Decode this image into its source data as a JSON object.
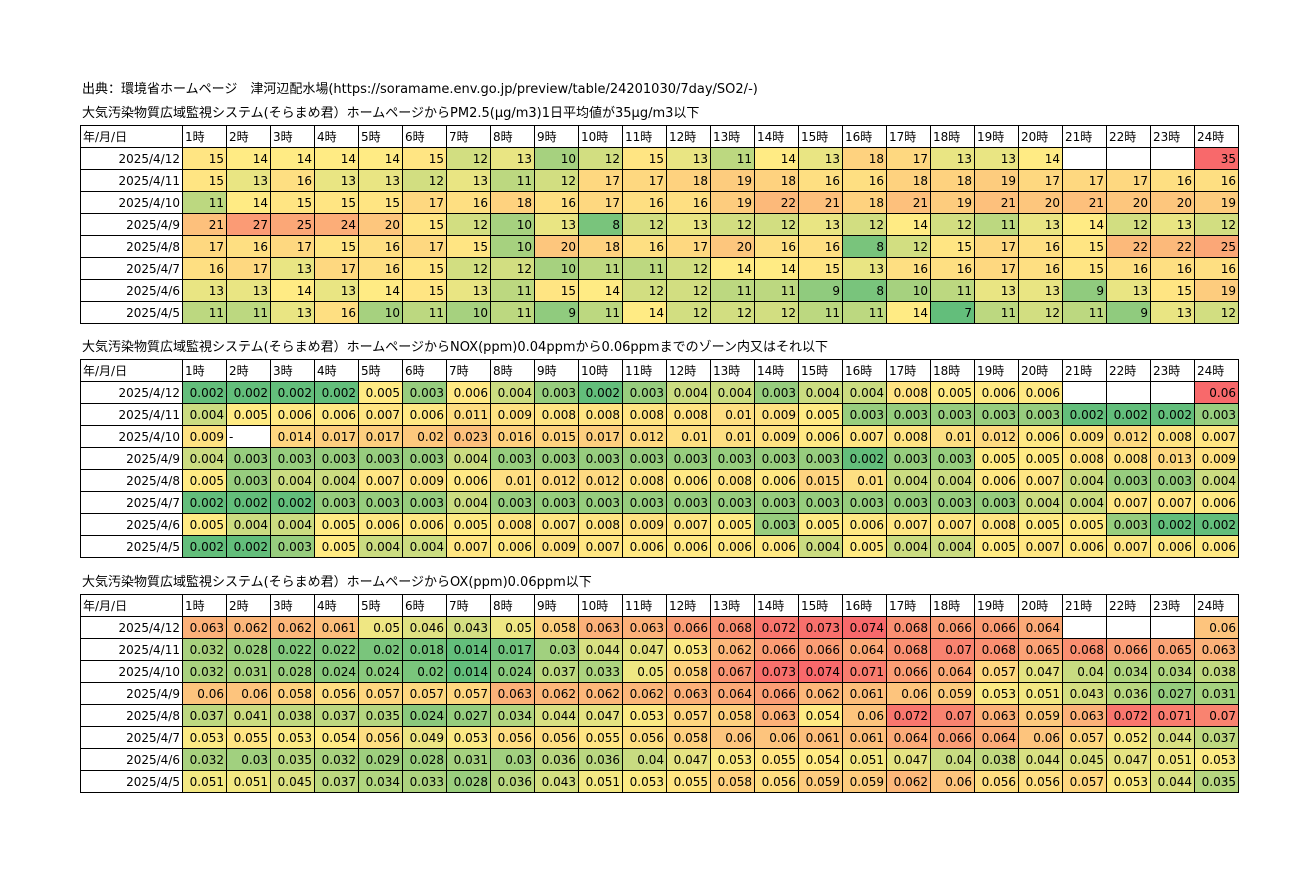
{
  "source": "出典：環境省ホームページ　津河辺配水場(https://soramame.env.go.jp/preview/table/24201030/7day/SO2/-)",
  "hours": [
    "1時",
    "2時",
    "3時",
    "4時",
    "5時",
    "6時",
    "7時",
    "8時",
    "9時",
    "10時",
    "11時",
    "12時",
    "13時",
    "14時",
    "15時",
    "16時",
    "17時",
    "18時",
    "19時",
    "20時",
    "21時",
    "22時",
    "23時",
    "24時"
  ],
  "date_header": "年/月/日",
  "dates": [
    "2025/4/12",
    "2025/4/11",
    "2025/4/10",
    "2025/4/9",
    "2025/4/8",
    "2025/4/7",
    "2025/4/6",
    "2025/4/5"
  ],
  "sections": [
    {
      "title": "大気汚染物質広域監視システム(そらまめ君）ホームページからPM2.5(μg/m3)1日平均値が35μg/m3以下",
      "rows": [
        [
          "15",
          "14",
          "14",
          "14",
          "14",
          "15",
          "12",
          "13",
          "10",
          "12",
          "15",
          "13",
          "11",
          "14",
          "13",
          "18",
          "17",
          "13",
          "13",
          "14",
          "",
          "",
          "",
          "35"
        ],
        [
          "15",
          "13",
          "16",
          "13",
          "13",
          "12",
          "13",
          "11",
          "12",
          "17",
          "17",
          "18",
          "19",
          "18",
          "16",
          "16",
          "18",
          "18",
          "19",
          "17",
          "17",
          "17",
          "16",
          "16"
        ],
        [
          "11",
          "14",
          "15",
          "15",
          "15",
          "17",
          "16",
          "18",
          "16",
          "17",
          "16",
          "16",
          "19",
          "22",
          "21",
          "18",
          "21",
          "19",
          "21",
          "20",
          "21",
          "20",
          "20",
          "19"
        ],
        [
          "21",
          "27",
          "25",
          "24",
          "20",
          "15",
          "12",
          "10",
          "13",
          "8",
          "12",
          "13",
          "12",
          "12",
          "13",
          "12",
          "14",
          "12",
          "11",
          "13",
          "14",
          "12",
          "13",
          "12"
        ],
        [
          "17",
          "16",
          "17",
          "15",
          "16",
          "17",
          "15",
          "10",
          "20",
          "18",
          "16",
          "17",
          "20",
          "16",
          "16",
          "8",
          "12",
          "15",
          "17",
          "16",
          "15",
          "22",
          "22",
          "25"
        ],
        [
          "16",
          "17",
          "13",
          "17",
          "16",
          "15",
          "12",
          "12",
          "10",
          "11",
          "11",
          "12",
          "14",
          "14",
          "15",
          "13",
          "16",
          "16",
          "17",
          "16",
          "15",
          "16",
          "16",
          "16"
        ],
        [
          "13",
          "13",
          "14",
          "13",
          "14",
          "15",
          "13",
          "11",
          "15",
          "14",
          "12",
          "12",
          "11",
          "11",
          "9",
          "8",
          "10",
          "11",
          "13",
          "13",
          "9",
          "13",
          "15",
          "19"
        ],
        [
          "11",
          "11",
          "13",
          "16",
          "10",
          "11",
          "10",
          "11",
          "9",
          "11",
          "14",
          "12",
          "12",
          "12",
          "11",
          "11",
          "14",
          "7",
          "11",
          "12",
          "11",
          "9",
          "13",
          "12"
        ]
      ]
    },
    {
      "title": "大気汚染物質広域監視システム(そらまめ君）ホームページからNOX(ppm)0.04ppmから0.06ppmまでのゾーン内又はそれ以下",
      "rows": [
        [
          "0.002",
          "0.002",
          "0.002",
          "0.002",
          "0.005",
          "0.003",
          "0.006",
          "0.004",
          "0.003",
          "0.002",
          "0.003",
          "0.004",
          "0.004",
          "0.003",
          "0.004",
          "0.004",
          "0.008",
          "0.005",
          "0.006",
          "0.006",
          "",
          "",
          "",
          "0.06"
        ],
        [
          "0.004",
          "0.005",
          "0.006",
          "0.006",
          "0.007",
          "0.006",
          "0.011",
          "0.009",
          "0.008",
          "0.008",
          "0.008",
          "0.008",
          "0.01",
          "0.009",
          "0.005",
          "0.003",
          "0.003",
          "0.003",
          "0.003",
          "0.003",
          "0.002",
          "0.002",
          "0.002",
          "0.003"
        ],
        [
          "0.009",
          "-",
          "0.014",
          "0.017",
          "0.017",
          "0.02",
          "0.023",
          "0.016",
          "0.015",
          "0.017",
          "0.012",
          "0.01",
          "0.01",
          "0.009",
          "0.006",
          "0.007",
          "0.008",
          "0.01",
          "0.012",
          "0.006",
          "0.009",
          "0.012",
          "0.008",
          "0.007"
        ],
        [
          "0.004",
          "0.003",
          "0.003",
          "0.003",
          "0.003",
          "0.003",
          "0.004",
          "0.003",
          "0.003",
          "0.003",
          "0.003",
          "0.003",
          "0.003",
          "0.003",
          "0.003",
          "0.002",
          "0.003",
          "0.003",
          "0.005",
          "0.005",
          "0.008",
          "0.008",
          "0.013",
          "0.009"
        ],
        [
          "0.005",
          "0.003",
          "0.004",
          "0.004",
          "0.007",
          "0.009",
          "0.006",
          "0.01",
          "0.012",
          "0.012",
          "0.008",
          "0.006",
          "0.008",
          "0.006",
          "0.015",
          "0.01",
          "0.004",
          "0.004",
          "0.006",
          "0.007",
          "0.004",
          "0.003",
          "0.003",
          "0.004"
        ],
        [
          "0.002",
          "0.002",
          "0.002",
          "0.003",
          "0.003",
          "0.003",
          "0.004",
          "0.003",
          "0.003",
          "0.003",
          "0.003",
          "0.003",
          "0.003",
          "0.003",
          "0.003",
          "0.003",
          "0.003",
          "0.003",
          "0.003",
          "0.004",
          "0.004",
          "0.007",
          "0.007",
          "0.006"
        ],
        [
          "0.005",
          "0.004",
          "0.004",
          "0.005",
          "0.006",
          "0.006",
          "0.005",
          "0.008",
          "0.007",
          "0.008",
          "0.009",
          "0.007",
          "0.005",
          "0.003",
          "0.005",
          "0.006",
          "0.007",
          "0.007",
          "0.008",
          "0.005",
          "0.005",
          "0.003",
          "0.002",
          "0.002"
        ],
        [
          "0.002",
          "0.002",
          "0.003",
          "0.005",
          "0.004",
          "0.004",
          "0.007",
          "0.006",
          "0.009",
          "0.007",
          "0.006",
          "0.006",
          "0.006",
          "0.006",
          "0.004",
          "0.005",
          "0.004",
          "0.004",
          "0.005",
          "0.007",
          "0.006",
          "0.007",
          "0.006",
          "0.006"
        ]
      ]
    },
    {
      "title": "大気汚染物質広域監視システム(そらまめ君）ホームページからOX(ppm)0.06ppm以下",
      "rows": [
        [
          "0.063",
          "0.062",
          "0.062",
          "0.061",
          "0.05",
          "0.046",
          "0.043",
          "0.05",
          "0.058",
          "0.063",
          "0.063",
          "0.066",
          "0.068",
          "0.072",
          "0.073",
          "0.074",
          "0.068",
          "0.066",
          "0.066",
          "0.064",
          "",
          "",
          "",
          "0.06"
        ],
        [
          "0.032",
          "0.028",
          "0.022",
          "0.022",
          "0.02",
          "0.018",
          "0.014",
          "0.017",
          "0.03",
          "0.044",
          "0.047",
          "0.053",
          "0.062",
          "0.066",
          "0.066",
          "0.064",
          "0.068",
          "0.07",
          "0.068",
          "0.065",
          "0.068",
          "0.066",
          "0.065",
          "0.063"
        ],
        [
          "0.032",
          "0.031",
          "0.028",
          "0.024",
          "0.024",
          "0.02",
          "0.014",
          "0.024",
          "0.037",
          "0.033",
          "0.05",
          "0.058",
          "0.067",
          "0.073",
          "0.074",
          "0.071",
          "0.066",
          "0.064",
          "0.057",
          "0.047",
          "0.04",
          "0.034",
          "0.034",
          "0.038"
        ],
        [
          "0.06",
          "0.06",
          "0.058",
          "0.056",
          "0.057",
          "0.057",
          "0.057",
          "0.063",
          "0.062",
          "0.062",
          "0.062",
          "0.063",
          "0.064",
          "0.066",
          "0.062",
          "0.061",
          "0.06",
          "0.059",
          "0.053",
          "0.051",
          "0.043",
          "0.036",
          "0.027",
          "0.031"
        ],
        [
          "0.037",
          "0.041",
          "0.038",
          "0.037",
          "0.035",
          "0.024",
          "0.027",
          "0.034",
          "0.044",
          "0.047",
          "0.053",
          "0.057",
          "0.058",
          "0.063",
          "0.054",
          "0.06",
          "0.072",
          "0.07",
          "0.063",
          "0.059",
          "0.063",
          "0.072",
          "0.071",
          "0.07"
        ],
        [
          "0.053",
          "0.055",
          "0.053",
          "0.054",
          "0.056",
          "0.049",
          "0.053",
          "0.056",
          "0.056",
          "0.055",
          "0.056",
          "0.058",
          "0.06",
          "0.06",
          "0.061",
          "0.061",
          "0.064",
          "0.066",
          "0.064",
          "0.06",
          "0.057",
          "0.052",
          "0.044",
          "0.037"
        ],
        [
          "0.032",
          "0.03",
          "0.035",
          "0.032",
          "0.029",
          "0.028",
          "0.031",
          "0.03",
          "0.036",
          "0.036",
          "0.04",
          "0.047",
          "0.053",
          "0.055",
          "0.054",
          "0.051",
          "0.047",
          "0.04",
          "0.038",
          "0.044",
          "0.045",
          "0.047",
          "0.051",
          "0.053"
        ],
        [
          "0.051",
          "0.051",
          "0.045",
          "0.037",
          "0.034",
          "0.033",
          "0.028",
          "0.036",
          "0.043",
          "0.051",
          "0.053",
          "0.055",
          "0.058",
          "0.056",
          "0.059",
          "0.059",
          "0.062",
          "0.06",
          "0.056",
          "0.056",
          "0.057",
          "0.053",
          "0.044",
          "0.035"
        ]
      ]
    }
  ],
  "colors": {
    "low": "#63be7b",
    "mid": "#ffeb84",
    "high": "#f8696b",
    "border": "#000000"
  }
}
